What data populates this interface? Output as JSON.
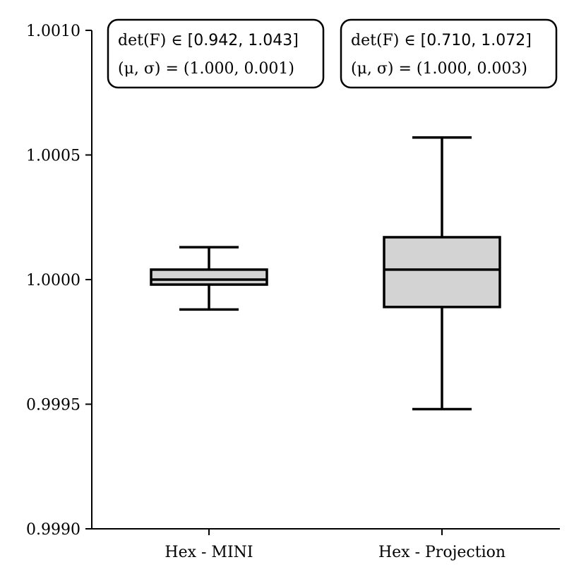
{
  "chart_data": {
    "type": "box",
    "categories": [
      "Hex - MINI",
      "Hex - Projection"
    ],
    "ylim": [
      0.999,
      1.001
    ],
    "yticks": [
      {
        "value": 0.999,
        "label": "0.9990"
      },
      {
        "value": 0.9995,
        "label": "0.9995"
      },
      {
        "value": 1.0,
        "label": "1.0000"
      },
      {
        "value": 1.0005,
        "label": "1.0005"
      },
      {
        "value": 1.001,
        "label": "1.0010"
      }
    ],
    "boxes": [
      {
        "category": "Hex - MINI",
        "whisker_low": 0.99988,
        "q1": 0.99998,
        "median": 1.0,
        "q3": 1.00004,
        "whisker_high": 1.00013,
        "fill": "#d3d3d3"
      },
      {
        "category": "Hex - Projection",
        "whisker_low": 0.99948,
        "q1": 0.99989,
        "median": 1.00004,
        "q3": 1.00017,
        "whisker_high": 1.00057,
        "fill": "#d3d3d3"
      }
    ],
    "annotations": [
      {
        "line1_prefix": "det(F) ∈ ",
        "line1_range": "[0.942, 1.043]",
        "line2": "(μ, σ) = (1.000, 0.001)"
      },
      {
        "line1_prefix": "det(F) ∈ ",
        "line1_range": "[0.710, 1.072]",
        "line2": "(μ, σ) = (1.000, 0.003)"
      }
    ],
    "grid": false
  }
}
